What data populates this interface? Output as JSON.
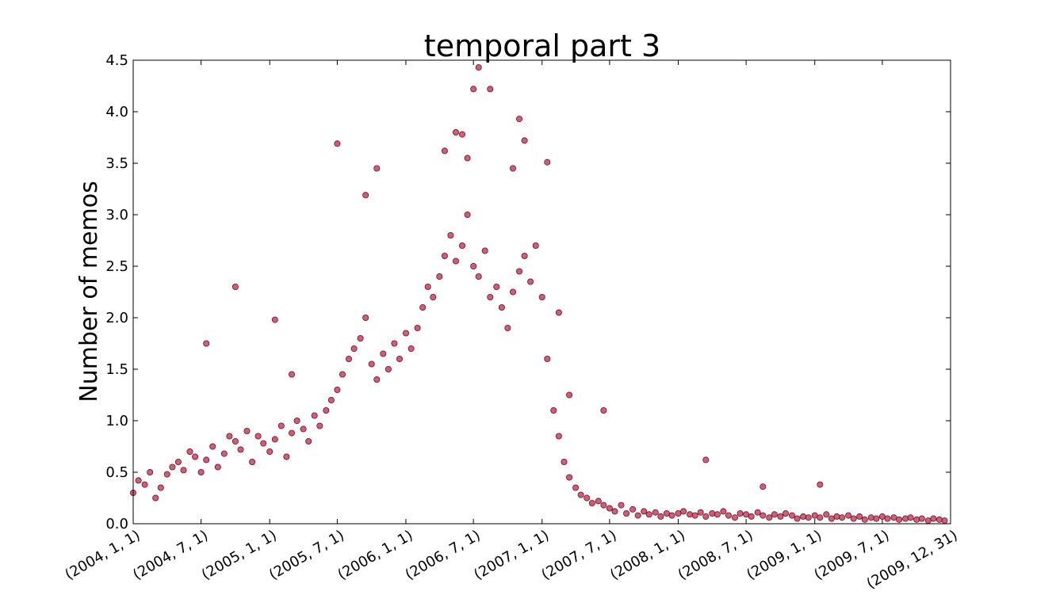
{
  "chart_data": {
    "type": "scatter",
    "title": "temporal part 3",
    "xlabel": "",
    "ylabel": "Number of memos",
    "xlim": [
      "2004-01-01",
      "2009-12-31"
    ],
    "ylim": [
      0.0,
      4.5
    ],
    "yticks": [
      "0.0",
      "0.5",
      "1.0",
      "1.5",
      "2.0",
      "2.5",
      "3.0",
      "3.5",
      "4.0",
      "4.5"
    ],
    "xticks": [
      {
        "date": "2004-01-01",
        "label": "(2004, 1, 1)"
      },
      {
        "date": "2004-07-01",
        "label": "(2004, 7, 1)"
      },
      {
        "date": "2005-01-01",
        "label": "(2005, 1, 1)"
      },
      {
        "date": "2005-07-01",
        "label": "(2005, 7, 1)"
      },
      {
        "date": "2006-01-01",
        "label": "(2006, 1, 1)"
      },
      {
        "date": "2006-07-01",
        "label": "(2006, 7, 1)"
      },
      {
        "date": "2007-01-01",
        "label": "(2007, 1, 1)"
      },
      {
        "date": "2007-07-01",
        "label": "(2007, 7, 1)"
      },
      {
        "date": "2008-01-01",
        "label": "(2008, 1, 1)"
      },
      {
        "date": "2008-07-01",
        "label": "(2008, 7, 1)"
      },
      {
        "date": "2009-01-01",
        "label": "(2009, 1, 1)"
      },
      {
        "date": "2009-07-01",
        "label": "(2009, 7, 1)"
      },
      {
        "date": "2009-12-31",
        "label": "(2009, 12, 31)"
      }
    ],
    "grid": false,
    "marker_color": "#c0284a",
    "marker_edge": "#6a0e22",
    "series": [
      {
        "x": [
          "2004-01-01",
          "2004-01-15",
          "2004-02-01",
          "2004-02-15",
          "2004-03-01",
          "2004-03-15",
          "2004-04-01",
          "2004-04-15",
          "2004-05-01",
          "2004-05-15",
          "2004-06-01",
          "2004-06-15",
          "2004-07-01",
          "2004-07-15",
          "2004-08-01",
          "2004-08-15",
          "2004-09-01",
          "2004-09-15",
          "2004-10-01",
          "2004-10-15",
          "2004-11-01",
          "2004-11-15",
          "2004-12-01",
          "2004-12-15",
          "2005-01-01",
          "2005-01-15",
          "2005-02-01",
          "2005-02-15",
          "2005-03-01",
          "2005-03-15",
          "2005-04-01",
          "2005-04-15",
          "2005-05-01",
          "2005-05-15",
          "2005-06-01",
          "2005-06-15",
          "2005-07-01",
          "2005-07-15",
          "2005-08-01",
          "2005-08-15",
          "2005-09-01",
          "2005-09-15",
          "2005-10-01",
          "2005-10-15",
          "2005-11-01",
          "2005-11-15",
          "2005-12-01",
          "2005-12-15",
          "2006-01-01",
          "2006-01-15",
          "2006-02-01",
          "2006-02-15",
          "2006-03-01",
          "2006-03-15",
          "2006-04-01",
          "2006-04-15",
          "2006-05-01",
          "2006-05-15",
          "2006-06-01",
          "2006-06-15",
          "2006-07-01",
          "2006-07-15",
          "2006-08-01",
          "2006-08-15",
          "2006-09-01",
          "2006-09-15",
          "2006-10-01",
          "2006-10-15",
          "2006-11-01",
          "2006-11-15",
          "2006-12-01",
          "2006-12-15",
          "2007-01-01",
          "2007-01-15",
          "2007-02-01",
          "2007-02-15",
          "2007-03-01",
          "2007-03-15",
          "2007-04-01",
          "2007-04-15",
          "2007-05-01",
          "2007-05-15",
          "2007-06-01",
          "2007-06-15",
          "2007-07-01",
          "2007-07-15",
          "2007-08-01",
          "2007-08-15",
          "2007-09-01",
          "2007-09-15",
          "2007-10-01",
          "2007-10-15",
          "2007-11-01",
          "2007-11-15",
          "2007-12-01",
          "2007-12-15",
          "2008-01-01",
          "2008-01-15",
          "2008-02-01",
          "2008-02-15",
          "2008-03-01",
          "2008-03-15",
          "2008-04-01",
          "2008-04-15",
          "2008-05-01",
          "2008-05-15",
          "2008-06-01",
          "2008-06-15",
          "2008-07-01",
          "2008-07-15",
          "2008-08-01",
          "2008-08-15",
          "2008-09-01",
          "2008-09-15",
          "2008-10-01",
          "2008-10-15",
          "2008-11-01",
          "2008-11-15",
          "2008-12-01",
          "2008-12-15",
          "2009-01-01",
          "2009-01-15",
          "2009-02-01",
          "2009-02-15",
          "2009-03-01",
          "2009-03-15",
          "2009-04-01",
          "2009-04-15",
          "2009-05-01",
          "2009-05-15",
          "2009-06-01",
          "2009-06-15",
          "2009-07-01",
          "2009-07-15",
          "2009-08-01",
          "2009-08-15",
          "2009-09-01",
          "2009-09-15",
          "2009-10-01",
          "2009-10-15",
          "2009-11-01",
          "2009-11-15",
          "2009-12-01",
          "2009-12-15",
          "2004-07-15",
          "2004-10-01",
          "2005-01-15",
          "2005-03-01",
          "2005-07-01",
          "2005-09-15",
          "2005-10-15",
          "2006-04-15",
          "2006-05-15",
          "2006-06-01",
          "2006-06-15",
          "2006-07-01",
          "2006-07-15",
          "2006-08-15",
          "2006-10-15",
          "2006-11-01",
          "2006-11-15",
          "2007-01-15",
          "2007-02-15",
          "2007-03-15",
          "2007-06-15",
          "2008-03-15",
          "2008-08-15",
          "2009-01-15"
        ],
        "y": [
          0.3,
          0.42,
          0.38,
          0.5,
          0.25,
          0.35,
          0.48,
          0.55,
          0.6,
          0.52,
          0.7,
          0.65,
          0.5,
          0.62,
          0.75,
          0.55,
          0.68,
          0.85,
          0.8,
          0.72,
          0.9,
          0.6,
          0.85,
          0.78,
          0.7,
          0.82,
          0.95,
          0.65,
          0.88,
          1.0,
          0.92,
          0.8,
          1.05,
          0.95,
          1.1,
          1.2,
          1.3,
          1.45,
          1.6,
          1.7,
          1.8,
          2.0,
          1.55,
          1.4,
          1.65,
          1.5,
          1.75,
          1.6,
          1.85,
          1.7,
          1.9,
          2.1,
          2.3,
          2.2,
          2.4,
          2.6,
          2.8,
          2.55,
          2.7,
          3.0,
          2.5,
          2.4,
          2.65,
          2.2,
          2.3,
          2.1,
          1.9,
          2.25,
          2.45,
          2.6,
          2.35,
          2.7,
          2.2,
          1.6,
          1.1,
          0.85,
          0.6,
          0.45,
          0.35,
          0.28,
          0.25,
          0.2,
          0.22,
          0.18,
          0.15,
          0.12,
          0.18,
          0.1,
          0.14,
          0.08,
          0.12,
          0.09,
          0.11,
          0.07,
          0.1,
          0.08,
          0.1,
          0.12,
          0.09,
          0.08,
          0.11,
          0.07,
          0.1,
          0.09,
          0.12,
          0.08,
          0.06,
          0.1,
          0.09,
          0.07,
          0.11,
          0.08,
          0.06,
          0.09,
          0.07,
          0.1,
          0.08,
          0.05,
          0.07,
          0.06,
          0.08,
          0.06,
          0.09,
          0.05,
          0.07,
          0.06,
          0.08,
          0.05,
          0.07,
          0.04,
          0.06,
          0.05,
          0.07,
          0.05,
          0.06,
          0.04,
          0.05,
          0.06,
          0.04,
          0.05,
          0.03,
          0.05,
          0.04,
          0.03,
          1.75,
          2.3,
          1.98,
          1.45,
          3.69,
          3.19,
          3.45,
          3.62,
          3.8,
          3.78,
          3.55,
          4.22,
          4.43,
          4.22,
          3.45,
          3.93,
          3.72,
          3.51,
          2.05,
          1.25,
          1.1,
          0.62,
          0.36,
          0.38
        ]
      }
    ]
  }
}
